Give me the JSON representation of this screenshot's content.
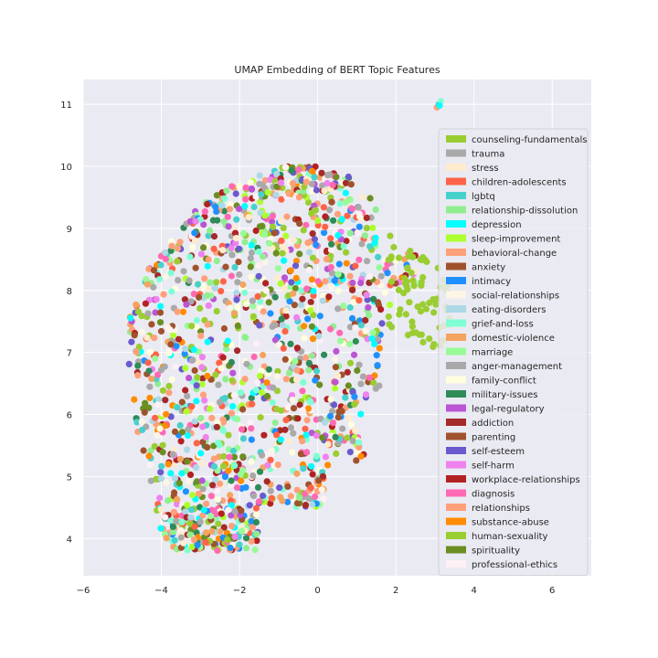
{
  "chart_data": {
    "type": "scatter",
    "title": "UMAP Embedding of BERT Topic Features",
    "xlabel": "",
    "ylabel": "",
    "xlim": [
      -6,
      7
    ],
    "ylim": [
      3.4,
      11.4
    ],
    "xticks": [
      -6,
      -4,
      -2,
      0,
      2,
      4,
      6
    ],
    "yticks": [
      4,
      5,
      6,
      7,
      8,
      9,
      10,
      11
    ],
    "grid": true,
    "legend_position": "right",
    "series": [
      {
        "name": "counseling-fundamentals",
        "color": "#9acd32"
      },
      {
        "name": "trauma",
        "color": "#a9a9a9"
      },
      {
        "name": "stress",
        "color": "#ffebcd"
      },
      {
        "name": "children-adolescents",
        "color": "#ff6347"
      },
      {
        "name": "lgbtq",
        "color": "#48d1cc"
      },
      {
        "name": "relationship-dissolution",
        "color": "#90ee90"
      },
      {
        "name": "depression",
        "color": "#00ffff"
      },
      {
        "name": "sleep-improvement",
        "color": "#adff2f"
      },
      {
        "name": "behavioral-change",
        "color": "#ffa07a"
      },
      {
        "name": "anxiety",
        "color": "#a0522d"
      },
      {
        "name": "intimacy",
        "color": "#1e90ff"
      },
      {
        "name": "social-relationships",
        "color": "#fdf5e6"
      },
      {
        "name": "eating-disorders",
        "color": "#add8e6"
      },
      {
        "name": "grief-and-loss",
        "color": "#7fffd4"
      },
      {
        "name": "domestic-violence",
        "color": "#f4a460"
      },
      {
        "name": "marriage",
        "color": "#98fb98"
      },
      {
        "name": "anger-management",
        "color": "#a9a9a9"
      },
      {
        "name": "family-conflict",
        "color": "#ffffe0"
      },
      {
        "name": "military-issues",
        "color": "#2e8b57"
      },
      {
        "name": "legal-regulatory",
        "color": "#ba55d3"
      },
      {
        "name": "addiction",
        "color": "#a52a2a"
      },
      {
        "name": "parenting",
        "color": "#a0522d"
      },
      {
        "name": "self-esteem",
        "color": "#6a5acd"
      },
      {
        "name": "self-harm",
        "color": "#ee82ee"
      },
      {
        "name": "workplace-relationships",
        "color": "#b22222"
      },
      {
        "name": "diagnosis",
        "color": "#ff69b4"
      },
      {
        "name": "relationships",
        "color": "#ffa07a"
      },
      {
        "name": "substance-abuse",
        "color": "#ff8c00"
      },
      {
        "name": "human-sexuality",
        "color": "#9acd32"
      },
      {
        "name": "spirituality",
        "color": "#6b8e23"
      },
      {
        "name": "professional-ethics",
        "color": "#fff0f5"
      }
    ]
  }
}
